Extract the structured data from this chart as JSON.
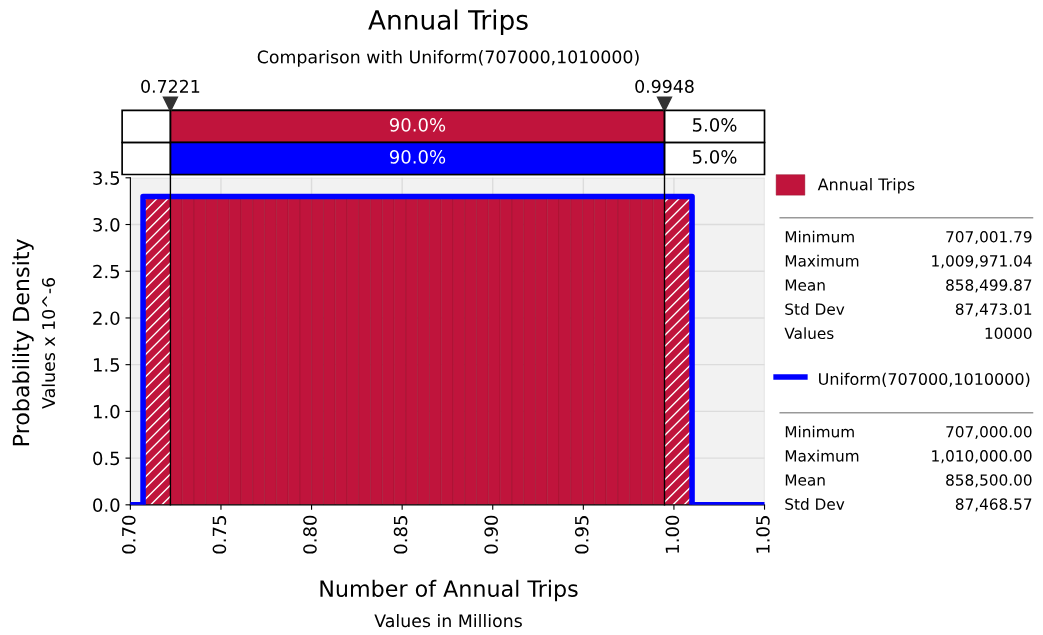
{
  "chart_data": {
    "type": "histogram",
    "title": "Annual Trips",
    "subtitle": "Comparison with Uniform(707000,1010000)",
    "xlabel": "Number of Annual Trips",
    "ylabel": "Probability Density",
    "bins": [
      0.707,
      0.7221,
      0.7286,
      0.7351,
      0.7416,
      0.7481,
      0.7546,
      0.7611,
      0.7676,
      0.7741,
      0.7806,
      0.7871,
      0.7936,
      0.8001,
      0.8066,
      0.8131,
      0.8196,
      0.8261,
      0.8326,
      0.8391,
      0.8456,
      0.8521,
      0.8586,
      0.8651,
      0.8716,
      0.8781,
      0.8846,
      0.8911,
      0.8976,
      0.9041,
      0.9106,
      0.9171,
      0.9236,
      0.9301,
      0.9366,
      0.9431,
      0.9496,
      0.9561,
      0.9626,
      0.9691,
      0.9756,
      0.9821,
      0.9886,
      0.9948,
      1.01
    ],
    "series": [
      {
        "name": "Annual Trips",
        "color": "#c0143c",
        "values": [
          3.28,
          3.28,
          3.28,
          3.28,
          3.28,
          3.28,
          3.28,
          3.28,
          3.28,
          3.28,
          3.28,
          3.28,
          3.28,
          3.28,
          3.28,
          3.28,
          3.28,
          3.28,
          3.28,
          3.28,
          3.28,
          3.28,
          3.28,
          3.28,
          3.28,
          3.28,
          3.28,
          3.28,
          3.28,
          3.28,
          3.28,
          3.28,
          3.28,
          3.28,
          3.28,
          3.28,
          3.28,
          3.28,
          3.28,
          3.28,
          3.28,
          3.28,
          3.28,
          3.28
        ]
      },
      {
        "name": "Uniform(707000,1010000)",
        "type": "step",
        "color": "#0000ff",
        "x": [
          0.7,
          0.707,
          1.01,
          1.05
        ],
        "values": [
          0,
          3.3,
          0,
          0
        ]
      }
    ],
    "ref_lines": [
      {
        "axis": "x",
        "value": 0.7221,
        "label": "0.7221",
        "color": "#000000"
      },
      {
        "axis": "x",
        "value": 0.9948,
        "label": "0.9948",
        "color": "#000000"
      }
    ],
    "xlim": [
      0.7,
      1.05
    ],
    "xticks": [
      {
        "value": 0.7,
        "label": "0.70"
      },
      {
        "value": 0.75,
        "label": "0.75"
      },
      {
        "value": 0.8,
        "label": "0.80"
      },
      {
        "value": 0.85,
        "label": "0.85"
      },
      {
        "value": 0.9,
        "label": "0.90"
      },
      {
        "value": 0.95,
        "label": "0.95"
      },
      {
        "value": 1.0,
        "label": "1.00"
      },
      {
        "value": 1.05,
        "label": "1.05"
      }
    ],
    "ylim": [
      0,
      3.5
    ],
    "yticks": [
      {
        "value": 0,
        "label": "0.0"
      },
      {
        "value": 0.5,
        "label": "0.5"
      },
      {
        "value": 1.0,
        "label": "1.0"
      },
      {
        "value": 1.5,
        "label": "1.5"
      },
      {
        "value": 2.0,
        "label": "2.0"
      },
      {
        "value": 2.5,
        "label": "2.5"
      },
      {
        "value": 3.0,
        "label": "3.0"
      },
      {
        "value": 3.5,
        "label": "3.5"
      }
    ],
    "grid": true,
    "legend": "right",
    "annotations": [
      "90.0%",
      "5.0%",
      "90.0%",
      "5.0%",
      "Values in Millions",
      "Values x 10^-6",
      "Minimum",
      "707,001.79",
      "Maximum",
      "1,009,971.04",
      "Mean",
      "858,499.87",
      "Std Dev",
      "87,473.01",
      "Values",
      "10000",
      "Minimum",
      "707,000.00",
      "Maximum",
      "1,010,000.00",
      "Mean",
      "858,500.00",
      "Std Dev",
      "87,468.57"
    ]
  }
}
